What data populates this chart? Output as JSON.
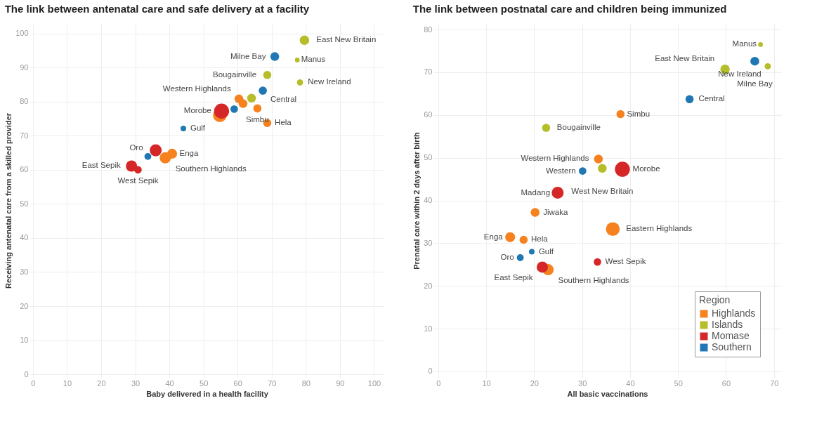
{
  "chart_data": [
    {
      "type": "bubble",
      "title": "The link between antenatal care and safe delivery at a facility",
      "xlabel": "Baby delivered in a health facility",
      "ylabel": "Receiving antenatal care from a skilled provider",
      "xlim": [
        -1,
        103
      ],
      "ylim": [
        -1,
        103
      ],
      "xticks": [
        0,
        10,
        20,
        30,
        40,
        50,
        60,
        70,
        80,
        90,
        100
      ],
      "yticks": [
        0,
        10,
        20,
        30,
        40,
        50,
        60,
        70,
        80,
        90,
        100
      ],
      "grid": true,
      "legend": false,
      "series": [
        {
          "color": "#f5821f",
          "x": [
            60.4,
            61.6,
            65.8,
            54.8,
            68.7,
            40.8,
            38.8
          ],
          "values": [
            80.8,
            79.4,
            78.0,
            76.0,
            73.7,
            64.7,
            63.5
          ],
          "sizes": [
            0.34,
            0.34,
            0.29,
            0.84,
            0.29,
            0.44,
            0.56
          ]
        },
        {
          "color": "#b5bd28",
          "x": [
            79.6,
            77.5,
            68.7,
            78.3,
            64.1
          ],
          "values": [
            98.0,
            92.2,
            87.8,
            85.6,
            81.0
          ],
          "sizes": [
            0.39,
            0.1,
            0.29,
            0.17,
            0.34
          ]
        },
        {
          "color": "#d62728",
          "x": [
            55.3,
            36.0,
            28.9,
            30.8
          ],
          "values": [
            77.2,
            65.7,
            61.1,
            60.0
          ],
          "sizes": [
            1,
            0.63,
            0.56,
            0.25
          ]
        },
        {
          "color": "#1f77b4",
          "x": [
            70.9,
            67.4,
            59.0,
            44.1,
            33.7
          ],
          "values": [
            93.2,
            83.2,
            77.8,
            72.1,
            63.9
          ],
          "sizes": [
            0.34,
            0.29,
            0.25,
            0.14,
            0.21
          ]
        }
      ],
      "annotations": [
        {
          "text": "East New Britain",
          "x": 79.6,
          "y": 98.0
        },
        {
          "text": "Milne Bay",
          "x": 70.9,
          "y": 93.2
        },
        {
          "text": "Manus",
          "x": 77.5,
          "y": 92.2
        },
        {
          "text": "Bougainville",
          "x": 68.7,
          "y": 87.8
        },
        {
          "text": "New Ireland",
          "x": 78.3,
          "y": 85.6
        },
        {
          "text": "Central",
          "x": 67.4,
          "y": 83.2
        },
        {
          "text": "Western Highlands",
          "x": 60.4,
          "y": 80.8
        },
        {
          "text": "Simbu",
          "x": 65.8,
          "y": 78.0
        },
        {
          "text": "Morobe",
          "x": 55.3,
          "y": 77.2
        },
        {
          "text": "Hela",
          "x": 68.7,
          "y": 73.7
        },
        {
          "text": "Gulf",
          "x": 44.1,
          "y": 72.1
        },
        {
          "text": "Oro",
          "x": 33.7,
          "y": 63.9
        },
        {
          "text": "Enga",
          "x": 40.8,
          "y": 64.7
        },
        {
          "text": "Southern Highlands",
          "x": 38.8,
          "y": 63.5
        },
        {
          "text": "East Sepik",
          "x": 28.9,
          "y": 61.1
        },
        {
          "text": "West Sepik",
          "x": 30.8,
          "y": 60.0
        }
      ]
    },
    {
      "type": "bubble",
      "title": "The link between postnatal care and children being immunized",
      "xlabel": "All basic vaccinations",
      "ylabel": "Prenatal care within 2 days after birth",
      "xlim": [
        -1,
        71.5
      ],
      "ylim": [
        -1.5,
        81.5
      ],
      "xticks": [
        0,
        10,
        20,
        30,
        40,
        50,
        60,
        70
      ],
      "yticks": [
        0,
        10,
        20,
        30,
        40,
        50,
        60,
        70,
        80
      ],
      "grid": true,
      "legend": "bottom right",
      "legend_title": "Region",
      "series": [
        {
          "name": "Highlands",
          "color": "#f5821f",
          "x": [
            38.0,
            33.4,
            20.2,
            36.4,
            15.0,
            17.8,
            22.9
          ],
          "values": [
            60.2,
            49.7,
            37.2,
            33.3,
            31.4,
            30.8,
            23.8
          ],
          "sizes": [
            0.29,
            0.34,
            0.34,
            0.84,
            0.44,
            0.29,
            0.56
          ]
        },
        {
          "name": "Islands",
          "color": "#b5bd28",
          "x": [
            67.2,
            68.7,
            59.8,
            22.5,
            34.2
          ],
          "values": [
            76.5,
            71.4,
            70.7,
            57.0,
            47.5
          ],
          "sizes": [
            0.1,
            0.17,
            0.39,
            0.29,
            0.34
          ]
        },
        {
          "name": "Momase",
          "color": "#d62728",
          "x": [
            38.4,
            24.9,
            33.2,
            21.7
          ],
          "values": [
            47.3,
            41.8,
            25.6,
            24.4
          ],
          "sizes": [
            1,
            0.63,
            0.25,
            0.56
          ]
        },
        {
          "name": "Southern",
          "color": "#1f77b4",
          "x": [
            66.0,
            52.4,
            30.1,
            19.5,
            17.1
          ],
          "values": [
            72.6,
            63.7,
            46.9,
            28.0,
            26.6
          ],
          "sizes": [
            0.34,
            0.29,
            0.25,
            0.14,
            0.21
          ]
        }
      ],
      "annotations": [
        {
          "text": "Manus",
          "x": 67.2,
          "y": 76.5
        },
        {
          "text": "Milne Bay",
          "x": 66.0,
          "y": 72.6
        },
        {
          "text": "New Ireland",
          "x": 68.7,
          "y": 71.4
        },
        {
          "text": "East New Britain",
          "x": 59.8,
          "y": 70.7
        },
        {
          "text": "Central",
          "x": 52.4,
          "y": 63.7
        },
        {
          "text": "Simbu",
          "x": 38.0,
          "y": 60.2
        },
        {
          "text": "Bougainville",
          "x": 22.5,
          "y": 57.0
        },
        {
          "text": "Western Highlands",
          "x": 33.4,
          "y": 49.7
        },
        {
          "text": "Western",
          "x": 30.1,
          "y": 46.9
        },
        {
          "text": "Morobe",
          "x": 38.4,
          "y": 47.3
        },
        {
          "text": "West New Britain",
          "x": 34.2,
          "y": 47.5
        },
        {
          "text": "Madang",
          "x": 24.9,
          "y": 41.8
        },
        {
          "text": "Jiwaka",
          "x": 20.2,
          "y": 37.2
        },
        {
          "text": "Eastern Highlands",
          "x": 36.4,
          "y": 33.3
        },
        {
          "text": "Enga",
          "x": 15.0,
          "y": 31.4
        },
        {
          "text": "Hela",
          "x": 17.8,
          "y": 30.8
        },
        {
          "text": "Gulf",
          "x": 19.5,
          "y": 28.0
        },
        {
          "text": "Oro",
          "x": 17.1,
          "y": 26.6
        },
        {
          "text": "West Sepik",
          "x": 33.2,
          "y": 25.6
        },
        {
          "text": "East Sepik",
          "x": 21.7,
          "y": 24.4
        },
        {
          "text": "Southern Highlands",
          "x": 22.9,
          "y": 23.8
        }
      ]
    }
  ]
}
